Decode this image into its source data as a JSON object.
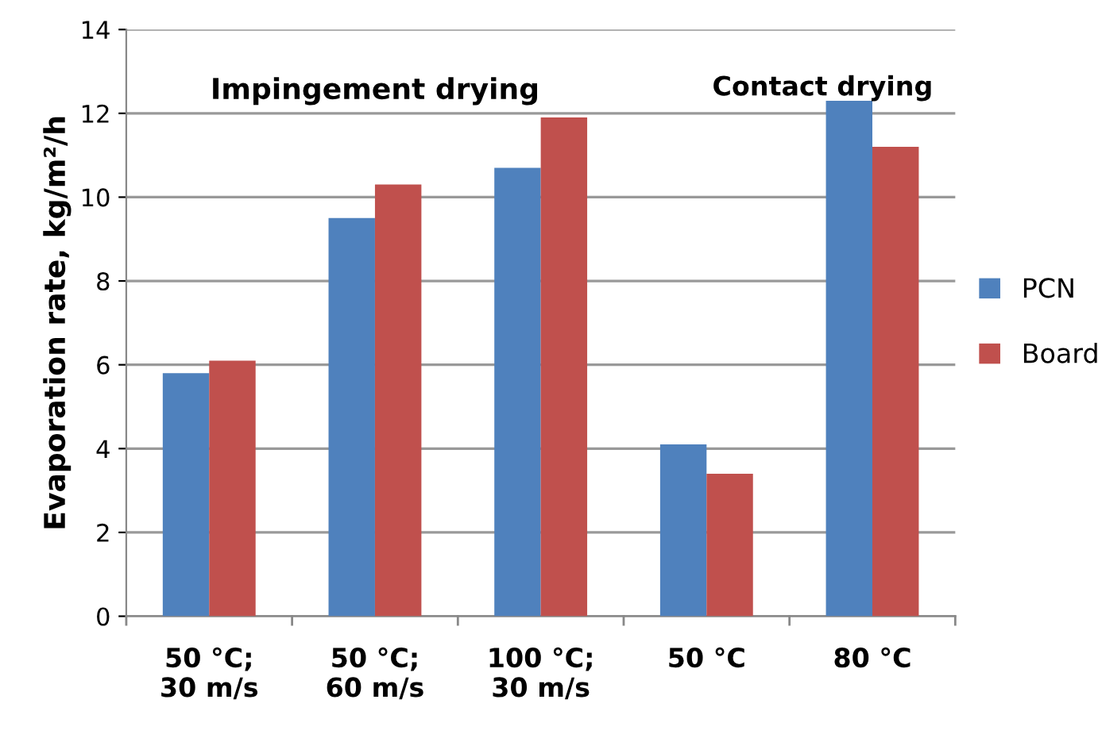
{
  "chart_data": {
    "type": "bar",
    "ylabel": "Evaporation rate, kg/m²/h",
    "categories": [
      "50 °C;\n30 m/s",
      "50 °C;\n60 m/s",
      "100 °C;\n30 m/s",
      "50 °C",
      "80 °C"
    ],
    "series": [
      {
        "name": "PCN",
        "color": "#4f81bd",
        "values": [
          5.8,
          9.5,
          10.7,
          4.1,
          12.3
        ]
      },
      {
        "name": "Board",
        "color": "#c0504d",
        "values": [
          6.1,
          10.3,
          11.9,
          3.4,
          11.2
        ]
      }
    ],
    "annotations": [
      "Impingement drying",
      "Contact drying"
    ],
    "ylim": [
      0,
      14
    ],
    "yticks": [
      0,
      2,
      4,
      6,
      8,
      10,
      12,
      14
    ],
    "grid": "y",
    "legend": "right"
  }
}
